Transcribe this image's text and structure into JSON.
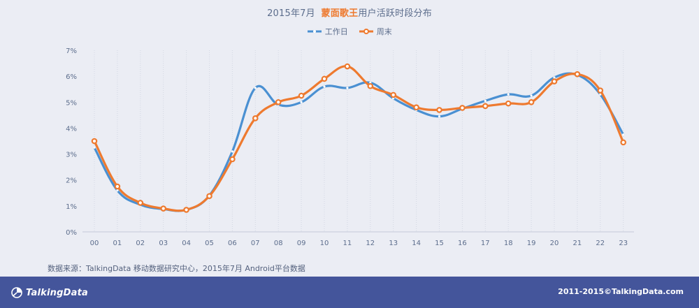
{
  "header": {
    "title_prefix": "2015年7月",
    "title_highlight": "蒙面歌王",
    "title_suffix": "用户活跃时段分布"
  },
  "footer": {
    "source": "数据来源：TalkingData 移动数据研究中心，2015年7月 Android平台数据",
    "logo_text": "TalkingData",
    "copyright": "2011-2015©TalkingData.com"
  },
  "colors": {
    "weekday": "#4a90d2",
    "weekend": "#ee7a2f",
    "footer_bg": "#44559b",
    "background": "#ebedf4"
  },
  "chart_data": {
    "type": "line",
    "title": "2015年7月 蒙面歌王用户活跃时段分布",
    "xlabel": "",
    "ylabel": "",
    "categories": [
      "00",
      "01",
      "02",
      "03",
      "04",
      "05",
      "06",
      "07",
      "08",
      "09",
      "10",
      "11",
      "12",
      "13",
      "14",
      "15",
      "16",
      "17",
      "18",
      "19",
      "20",
      "21",
      "22",
      "23"
    ],
    "ylim": [
      0,
      7
    ],
    "yticks": [
      "0%",
      "1%",
      "2%",
      "3%",
      "4%",
      "5%",
      "6%",
      "7%"
    ],
    "legend_position": "top-center",
    "grid": "vertical-dotted",
    "series": [
      {
        "name": "工作日",
        "color": "#4a90d2",
        "line_style": "dash-dot-marker",
        "values": [
          3.25,
          1.6,
          1.05,
          0.88,
          0.85,
          1.4,
          3.1,
          5.55,
          4.9,
          5.0,
          5.6,
          5.55,
          5.75,
          5.15,
          4.7,
          4.45,
          4.75,
          5.05,
          5.3,
          5.25,
          5.95,
          6.05,
          5.3,
          3.75
        ]
      },
      {
        "name": "周末",
        "color": "#ee7a2f",
        "line_style": "circle-marker",
        "values": [
          3.5,
          1.75,
          1.12,
          0.9,
          0.85,
          1.38,
          2.8,
          4.38,
          5.0,
          5.25,
          5.9,
          6.38,
          5.62,
          5.28,
          4.8,
          4.7,
          4.78,
          4.85,
          4.95,
          5.0,
          5.8,
          6.08,
          5.45,
          3.45
        ]
      }
    ]
  }
}
